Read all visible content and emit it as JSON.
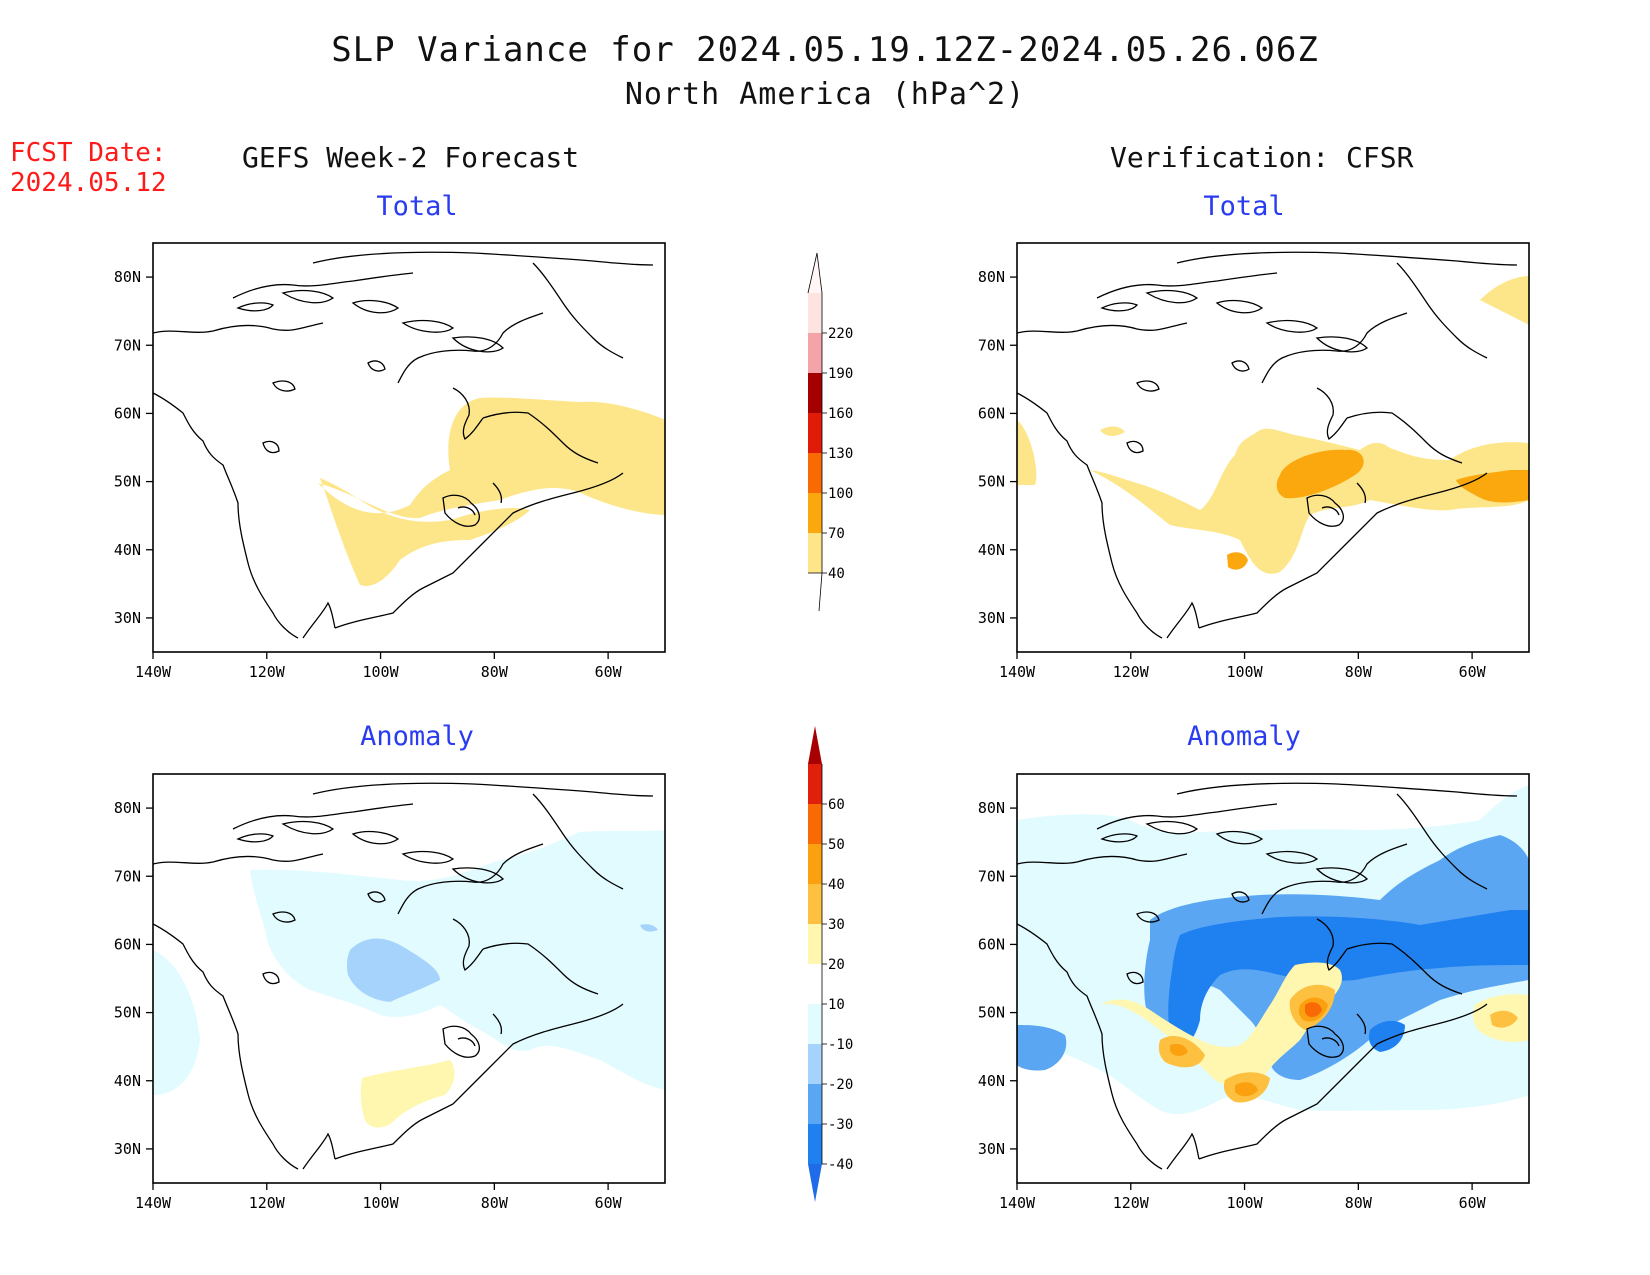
{
  "title_line1": "SLP Variance for 2024.05.19.12Z-2024.05.26.06Z",
  "title_line2": "North America (hPa^2)",
  "fcst_label": "FCST Date:",
  "fcst_date": "2024.05.12",
  "columns": {
    "forecast": "GEFS Week-2 Forecast",
    "verification": "Verification: CFSR"
  },
  "panels": {
    "forecast_total": "Total",
    "forecast_anomaly": "Anomaly",
    "verif_total": "Total",
    "verif_anomaly": "Anomaly"
  },
  "axes": {
    "lon_labels": [
      "140W",
      "120W",
      "100W",
      "80W",
      "60W"
    ],
    "lat_labels": [
      "30N",
      "40N",
      "50N",
      "60N",
      "70N",
      "80N"
    ],
    "lon_range": [
      -140,
      -50
    ],
    "lat_range": [
      25,
      85
    ]
  },
  "total_colorbar": {
    "levels": [
      "40",
      "70",
      "100",
      "130",
      "160",
      "190",
      "220"
    ],
    "colors": [
      "#fde68a",
      "#fba80f",
      "#f96a04",
      "#e01b08",
      "#a50000",
      "#f4a3a8",
      "#fde4e1"
    ]
  },
  "anomaly_colorbar": {
    "levels": [
      "-40",
      "-30",
      "-20",
      "-10",
      "10",
      "20",
      "30",
      "40",
      "50",
      "60"
    ],
    "colors": [
      "#1f6be8",
      "#1f80f0",
      "#5aa6f2",
      "#a6d3fb",
      "#e2fbff",
      "#ffffff",
      "#fff7b0",
      "#fdc040",
      "#fba10f",
      "#f96906",
      "#e0200a",
      "#a80000"
    ]
  }
}
